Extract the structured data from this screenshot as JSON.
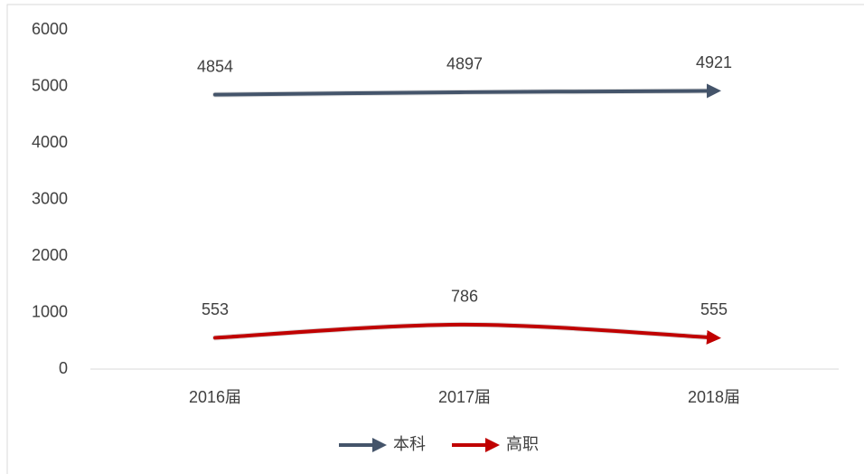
{
  "chart_data": {
    "type": "line",
    "categories": [
      "2016届",
      "2017届",
      "2018届"
    ],
    "series": [
      {
        "name": "本科",
        "color": "#44546a",
        "values": [
          4854,
          4897,
          4921
        ]
      },
      {
        "name": "高职",
        "color": "#c00000",
        "values": [
          553,
          786,
          555
        ]
      }
    ],
    "ylim": [
      0,
      6000
    ],
    "yticks": [
      0,
      1000,
      2000,
      3000,
      4000,
      5000,
      6000
    ],
    "smooth": true,
    "legend": "bottom"
  }
}
